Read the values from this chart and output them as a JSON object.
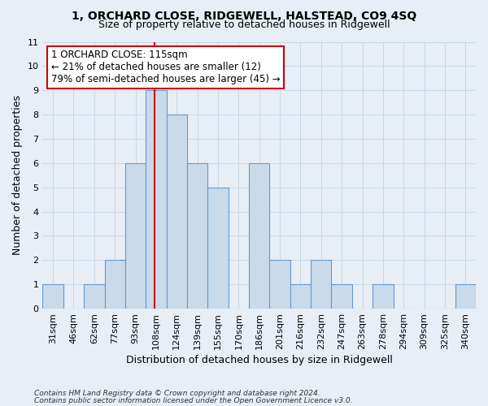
{
  "title": "1, ORCHARD CLOSE, RIDGEWELL, HALSTEAD, CO9 4SQ",
  "subtitle": "Size of property relative to detached houses in Ridgewell",
  "xlabel": "Distribution of detached houses by size in Ridgewell",
  "ylabel": "Number of detached properties",
  "bin_labels": [
    "31sqm",
    "46sqm",
    "62sqm",
    "77sqm",
    "93sqm",
    "108sqm",
    "124sqm",
    "139sqm",
    "155sqm",
    "170sqm",
    "186sqm",
    "201sqm",
    "216sqm",
    "232sqm",
    "247sqm",
    "263sqm",
    "278sqm",
    "294sqm",
    "309sqm",
    "325sqm",
    "340sqm"
  ],
  "bar_heights": [
    1,
    0,
    1,
    2,
    6,
    9,
    8,
    6,
    5,
    0,
    6,
    2,
    1,
    2,
    1,
    0,
    1,
    0,
    0,
    0,
    1
  ],
  "bar_color": "#c9daea",
  "bar_edge_color": "#6699cc",
  "grid_color": "#c8d8e8",
  "background_color": "#e8eef5",
  "red_line_color": "#cc0000",
  "annotation_title": "1 ORCHARD CLOSE: 115sqm",
  "annotation_line1": "← 21% of detached houses are smaller (12)",
  "annotation_line2": "79% of semi-detached houses are larger (45) →",
  "annotation_box_color": "#ffffff",
  "annotation_box_edge": "#cc0000",
  "ylim": [
    0,
    11
  ],
  "yticks": [
    0,
    1,
    2,
    3,
    4,
    5,
    6,
    7,
    8,
    9,
    10,
    11
  ],
  "footer1": "Contains HM Land Registry data © Crown copyright and database right 2024.",
  "footer2": "Contains public sector information licensed under the Open Government Licence v3.0."
}
